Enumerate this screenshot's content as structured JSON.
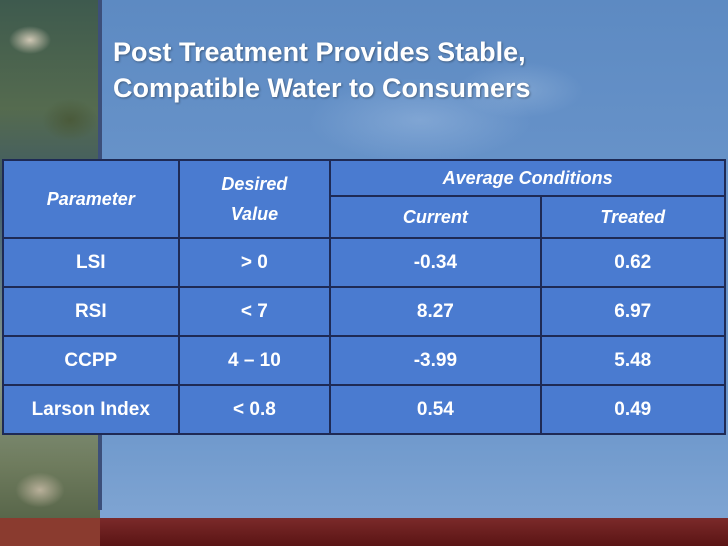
{
  "slide": {
    "title_line1": "Post Treatment Provides Stable,",
    "title_line2": "Compatible Water to Consumers"
  },
  "table": {
    "headers": {
      "parameter": "Parameter",
      "desired_line1": "Desired",
      "desired_line2": "Value",
      "average_conditions": "Average Conditions",
      "current": "Current",
      "treated": "Treated"
    },
    "rows": [
      {
        "parameter": "LSI",
        "desired": "> 0",
        "current": "-0.34",
        "treated": "0.62"
      },
      {
        "parameter": "RSI",
        "desired": "< 7",
        "current": "8.27",
        "treated": "6.97"
      },
      {
        "parameter": "CCPP",
        "desired": "4 – 10",
        "current": "-3.99",
        "treated": "5.48"
      },
      {
        "parameter": "Larson Index",
        "desired": "< 0.8",
        "current": "0.54",
        "treated": "0.49"
      }
    ]
  },
  "colors": {
    "background": "#6a95cb",
    "table_fill": "#4a7bd0",
    "grid_lines": "#1e2a55",
    "bottom_band": "#5a1414",
    "text": "#ffffff"
  }
}
